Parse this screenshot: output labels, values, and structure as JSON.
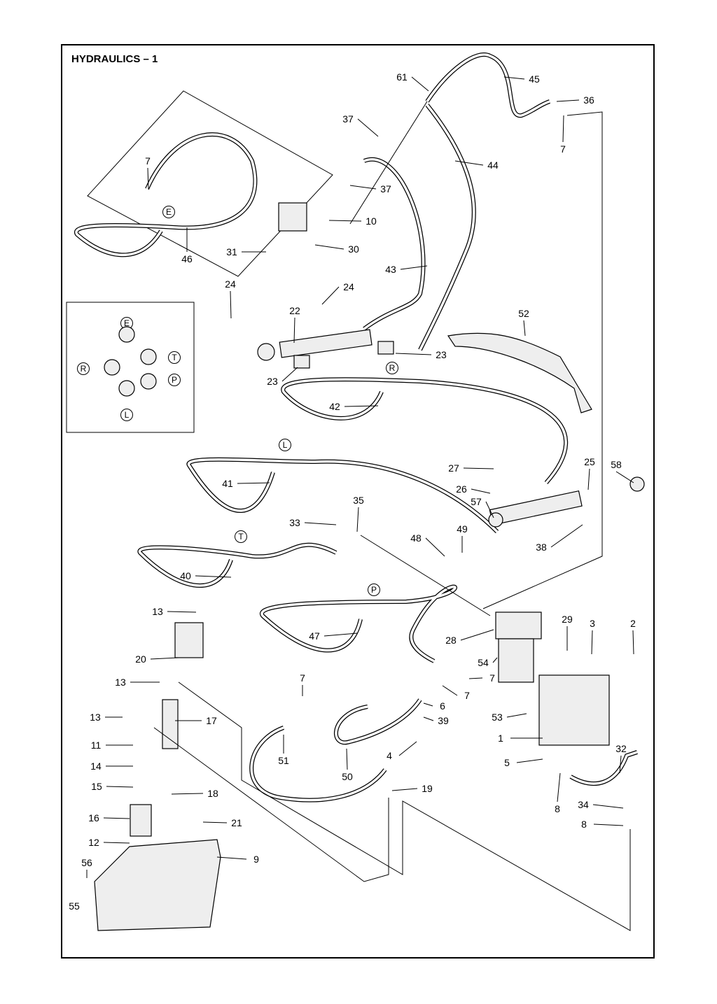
{
  "title": "HYDRAULICS – 1",
  "callouts": [
    "61",
    "45",
    "36",
    "7",
    "37",
    "44",
    "7",
    "37",
    "10",
    "46",
    "31",
    "30",
    "43",
    "24",
    "24",
    "22",
    "52",
    "23",
    "23",
    "42",
    "25",
    "27",
    "58",
    "41",
    "26",
    "35",
    "57",
    "33",
    "48",
    "49",
    "38",
    "40",
    "13",
    "29",
    "3",
    "2",
    "28",
    "47",
    "20",
    "54",
    "7",
    "7",
    "13",
    "7",
    "6",
    "13",
    "17",
    "39",
    "53",
    "1",
    "11",
    "4",
    "51",
    "50",
    "5",
    "32",
    "14",
    "15",
    "19",
    "18",
    "8",
    "34",
    "16",
    "21",
    "8",
    "12",
    "9",
    "56",
    "55"
  ],
  "port_markers": [
    "E",
    "E",
    "T",
    "R",
    "P",
    "L",
    "R",
    "L",
    "T",
    "P"
  ],
  "colors": {
    "line": "#000000",
    "background": "#ffffff"
  }
}
